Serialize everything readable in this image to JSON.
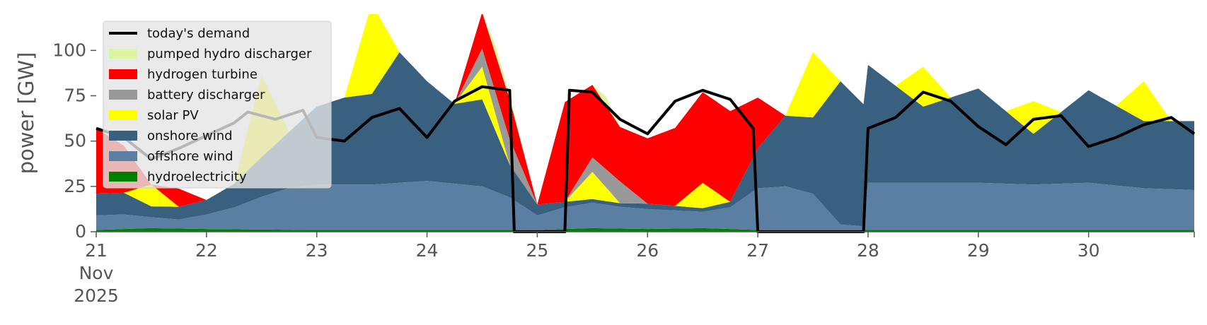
{
  "chart_data": {
    "type": "area",
    "title": "",
    "ylabel": "power [GW]",
    "xlabel": "",
    "xlim": [
      "2025-11-21T00:00",
      "2025-11-30T23:00"
    ],
    "ylim": [
      0,
      120
    ],
    "yticks": [
      0,
      25,
      50,
      75,
      100
    ],
    "xticks": [
      {
        "x": "2025-11-21T00:00",
        "label": "21",
        "sublabels": [
          "Nov",
          "2025"
        ]
      },
      {
        "x": "2025-11-22T00:00",
        "label": "22"
      },
      {
        "x": "2025-11-23T00:00",
        "label": "23"
      },
      {
        "x": "2025-11-24T00:00",
        "label": "24"
      },
      {
        "x": "2025-11-25T00:00",
        "label": "25"
      },
      {
        "x": "2025-11-26T00:00",
        "label": "26"
      },
      {
        "x": "2025-11-27T00:00",
        "label": "27"
      },
      {
        "x": "2025-11-28T00:00",
        "label": "28"
      },
      {
        "x": "2025-11-29T00:00",
        "label": "29"
      },
      {
        "x": "2025-11-30T00:00",
        "label": "30"
      }
    ],
    "grid": false,
    "legend_position": "top-left",
    "stack_order": [
      "hydroelectricity",
      "offshore wind",
      "onshore wind",
      "solar PV",
      "battery discharger",
      "hydrogen turbine",
      "pumped hydro discharger"
    ],
    "series": [
      {
        "name": "hydroelectricity",
        "color": "#008000",
        "points": [
          [
            "2025-11-21T00:00",
            1
          ],
          [
            "2025-11-21T12:00",
            2
          ],
          [
            "2025-11-22T00:00",
            1.5
          ],
          [
            "2025-11-23T00:00",
            1
          ],
          [
            "2025-11-24T00:00",
            1
          ],
          [
            "2025-11-25T00:00",
            1
          ],
          [
            "2025-11-25T12:00",
            2
          ],
          [
            "2025-11-26T00:00",
            1.5
          ],
          [
            "2025-11-26T12:00",
            2
          ],
          [
            "2025-11-27T00:00",
            1
          ],
          [
            "2025-11-28T00:00",
            1
          ],
          [
            "2025-11-29T00:00",
            1
          ],
          [
            "2025-11-30T00:00",
            1
          ],
          [
            "2025-11-30T23:00",
            1
          ]
        ]
      },
      {
        "name": "offshore wind",
        "color": "#5b7fa3",
        "points": [
          [
            "2025-11-21T00:00",
            8
          ],
          [
            "2025-11-21T06:00",
            8
          ],
          [
            "2025-11-21T12:00",
            6
          ],
          [
            "2025-11-21T18:00",
            5
          ],
          [
            "2025-11-22T00:00",
            8
          ],
          [
            "2025-11-22T06:00",
            12
          ],
          [
            "2025-11-22T12:00",
            18
          ],
          [
            "2025-11-22T18:00",
            23
          ],
          [
            "2025-11-23T00:00",
            25
          ],
          [
            "2025-11-23T12:00",
            25
          ],
          [
            "2025-11-24T00:00",
            27
          ],
          [
            "2025-11-24T12:00",
            24
          ],
          [
            "2025-11-24T18:00",
            18
          ],
          [
            "2025-11-25T00:00",
            8
          ],
          [
            "2025-11-25T06:00",
            12
          ],
          [
            "2025-11-25T12:00",
            14
          ],
          [
            "2025-11-25T18:00",
            12
          ],
          [
            "2025-11-26T00:00",
            11
          ],
          [
            "2025-11-26T12:00",
            9
          ],
          [
            "2025-11-26T18:00",
            12
          ],
          [
            "2025-11-27T00:00",
            23
          ],
          [
            "2025-11-27T06:00",
            24
          ],
          [
            "2025-11-27T12:00",
            20
          ],
          [
            "2025-11-27T18:00",
            3
          ],
          [
            "2025-11-27T23:00",
            2
          ],
          [
            "2025-11-28T00:00",
            26
          ],
          [
            "2025-11-28T12:00",
            26
          ],
          [
            "2025-11-29T00:00",
            26
          ],
          [
            "2025-11-29T12:00",
            25
          ],
          [
            "2025-11-30T00:00",
            26
          ],
          [
            "2025-11-30T12:00",
            23
          ],
          [
            "2025-11-30T23:00",
            22
          ]
        ]
      },
      {
        "name": "onshore wind",
        "color": "#3a6080",
        "points": [
          [
            "2025-11-21T00:00",
            12
          ],
          [
            "2025-11-21T06:00",
            12
          ],
          [
            "2025-11-21T12:00",
            6
          ],
          [
            "2025-11-21T18:00",
            7
          ],
          [
            "2025-11-22T00:00",
            8
          ],
          [
            "2025-11-22T06:00",
            13
          ],
          [
            "2025-11-22T12:00",
            22
          ],
          [
            "2025-11-22T18:00",
            31
          ],
          [
            "2025-11-23T00:00",
            43
          ],
          [
            "2025-11-23T06:00",
            48
          ],
          [
            "2025-11-23T12:00",
            50
          ],
          [
            "2025-11-23T18:00",
            72
          ],
          [
            "2025-11-24T00:00",
            55
          ],
          [
            "2025-11-24T06:00",
            44
          ],
          [
            "2025-11-24T12:00",
            48
          ],
          [
            "2025-11-24T18:00",
            18
          ],
          [
            "2025-11-25T00:00",
            6
          ],
          [
            "2025-11-25T06:00",
            3
          ],
          [
            "2025-11-25T12:00",
            2
          ],
          [
            "2025-11-25T18:00",
            2
          ],
          [
            "2025-11-26T00:00",
            3
          ],
          [
            "2025-11-26T12:00",
            2
          ],
          [
            "2025-11-26T18:00",
            3
          ],
          [
            "2025-11-27T00:00",
            22
          ],
          [
            "2025-11-27T06:00",
            39
          ],
          [
            "2025-11-27T12:00",
            42
          ],
          [
            "2025-11-27T18:00",
            79
          ],
          [
            "2025-11-28T00:00",
            65
          ],
          [
            "2025-11-28T12:00",
            42
          ],
          [
            "2025-11-29T00:00",
            52
          ],
          [
            "2025-11-29T12:00",
            28
          ],
          [
            "2025-11-30T00:00",
            51
          ],
          [
            "2025-11-30T12:00",
            37
          ],
          [
            "2025-11-30T23:00",
            38
          ]
        ]
      },
      {
        "name": "solar PV",
        "color": "#ffff00",
        "points": [
          [
            "2025-11-21T00:00",
            0
          ],
          [
            "2025-11-21T06:00",
            0
          ],
          [
            "2025-11-21T12:00",
            12
          ],
          [
            "2025-11-21T18:00",
            0
          ],
          [
            "2025-11-22T06:00",
            0
          ],
          [
            "2025-11-22T12:00",
            45
          ],
          [
            "2025-11-22T18:00",
            0
          ],
          [
            "2025-11-23T06:00",
            0
          ],
          [
            "2025-11-23T12:00",
            50
          ],
          [
            "2025-11-23T18:00",
            0
          ],
          [
            "2025-11-24T06:00",
            0
          ],
          [
            "2025-11-24T12:00",
            18
          ],
          [
            "2025-11-24T18:00",
            0
          ],
          [
            "2025-11-25T06:00",
            0
          ],
          [
            "2025-11-25T12:00",
            15
          ],
          [
            "2025-11-25T18:00",
            0
          ],
          [
            "2025-11-26T06:00",
            0
          ],
          [
            "2025-11-26T12:00",
            14
          ],
          [
            "2025-11-26T18:00",
            0
          ],
          [
            "2025-11-27T06:00",
            0
          ],
          [
            "2025-11-27T12:00",
            36
          ],
          [
            "2025-11-27T18:00",
            0
          ],
          [
            "2025-11-28T06:00",
            0
          ],
          [
            "2025-11-28T12:00",
            22
          ],
          [
            "2025-11-28T18:00",
            0
          ],
          [
            "2025-11-29T06:00",
            0
          ],
          [
            "2025-11-29T12:00",
            18
          ],
          [
            "2025-11-29T18:00",
            0
          ],
          [
            "2025-11-30T06:00",
            0
          ],
          [
            "2025-11-30T12:00",
            22
          ],
          [
            "2025-11-30T18:00",
            0
          ],
          [
            "2025-11-30T23:00",
            0
          ]
        ]
      },
      {
        "name": "battery discharger",
        "color": "#999999",
        "points": [
          [
            "2025-11-21T00:00",
            0
          ],
          [
            "2025-11-24T06:00",
            0
          ],
          [
            "2025-11-24T12:00",
            10
          ],
          [
            "2025-11-24T18:00",
            14
          ],
          [
            "2025-11-25T00:00",
            0
          ],
          [
            "2025-11-25T06:00",
            0
          ],
          [
            "2025-11-25T12:00",
            8
          ],
          [
            "2025-11-25T18:00",
            12
          ],
          [
            "2025-11-26T00:00",
            0
          ],
          [
            "2025-11-30T23:00",
            0
          ]
        ]
      },
      {
        "name": "hydrogen turbine",
        "color": "#ff0000",
        "points": [
          [
            "2025-11-21T00:00",
            36
          ],
          [
            "2025-11-21T06:00",
            26
          ],
          [
            "2025-11-21T12:00",
            0
          ],
          [
            "2025-11-21T18:00",
            10
          ],
          [
            "2025-11-22T00:00",
            0
          ],
          [
            "2025-11-24T06:00",
            0
          ],
          [
            "2025-11-24T12:00",
            20
          ],
          [
            "2025-11-24T18:00",
            22
          ],
          [
            "2025-11-25T00:00",
            0
          ],
          [
            "2025-11-25T06:00",
            55
          ],
          [
            "2025-11-25T12:00",
            40
          ],
          [
            "2025-11-25T18:00",
            30
          ],
          [
            "2025-11-26T00:00",
            36
          ],
          [
            "2025-11-26T12:00",
            50
          ],
          [
            "2025-11-26T18:00",
            50
          ],
          [
            "2025-11-27T00:00",
            28
          ],
          [
            "2025-11-27T06:00",
            0
          ],
          [
            "2025-11-30T23:00",
            0
          ]
        ]
      },
      {
        "name": "pumped hydro discharger",
        "color": "#dbf5a3",
        "points": [
          [
            "2025-11-21T00:00",
            0
          ],
          [
            "2025-11-24T12:00",
            0
          ],
          [
            "2025-11-24T15:00",
            5
          ],
          [
            "2025-11-24T18:00",
            2
          ],
          [
            "2025-11-24T21:00",
            0
          ],
          [
            "2025-11-25T12:00",
            0
          ],
          [
            "2025-11-25T15:00",
            5
          ],
          [
            "2025-11-25T18:00",
            0
          ],
          [
            "2025-11-30T23:00",
            0
          ]
        ]
      },
      {
        "name": "today's demand",
        "color": "#000000",
        "line": true,
        "points": [
          [
            "2025-11-21T00:00",
            57
          ],
          [
            "2025-11-21T06:00",
            52
          ],
          [
            "2025-11-21T12:00",
            40
          ],
          [
            "2025-11-21T18:00",
            46
          ],
          [
            "2025-11-22T00:00",
            53
          ],
          [
            "2025-11-22T06:00",
            60
          ],
          [
            "2025-11-22T09:00",
            66
          ],
          [
            "2025-11-22T15:00",
            62
          ],
          [
            "2025-11-22T21:00",
            67
          ],
          [
            "2025-11-23T00:00",
            52
          ],
          [
            "2025-11-23T06:00",
            50
          ],
          [
            "2025-11-23T12:00",
            63
          ],
          [
            "2025-11-23T18:00",
            68
          ],
          [
            "2025-11-24T00:00",
            52
          ],
          [
            "2025-11-24T06:00",
            72
          ],
          [
            "2025-11-24T12:00",
            80
          ],
          [
            "2025-11-24T18:00",
            78
          ],
          [
            "2025-11-24T19:00",
            0
          ],
          [
            "2025-11-25T06:00",
            0
          ],
          [
            "2025-11-25T07:00",
            78
          ],
          [
            "2025-11-25T12:00",
            77
          ],
          [
            "2025-11-25T18:00",
            62
          ],
          [
            "2025-11-26T00:00",
            54
          ],
          [
            "2025-11-26T06:00",
            72
          ],
          [
            "2025-11-26T12:00",
            78
          ],
          [
            "2025-11-26T18:00",
            73
          ],
          [
            "2025-11-26T23:00",
            57
          ],
          [
            "2025-11-27T00:00",
            0
          ],
          [
            "2025-11-27T23:00",
            0
          ],
          [
            "2025-11-28T00:00",
            57
          ],
          [
            "2025-11-28T06:00",
            63
          ],
          [
            "2025-11-28T12:00",
            77
          ],
          [
            "2025-11-28T18:00",
            72
          ],
          [
            "2025-11-29T00:00",
            58
          ],
          [
            "2025-11-29T06:00",
            48
          ],
          [
            "2025-11-29T12:00",
            62
          ],
          [
            "2025-11-29T18:00",
            64
          ],
          [
            "2025-11-30T00:00",
            47
          ],
          [
            "2025-11-30T06:00",
            52
          ],
          [
            "2025-11-30T12:00",
            59
          ],
          [
            "2025-11-30T18:00",
            63
          ],
          [
            "2025-11-30T23:00",
            54
          ]
        ]
      }
    ],
    "legend": [
      {
        "label": "today's demand",
        "kind": "line",
        "color": "#000000"
      },
      {
        "label": "pumped hydro discharger",
        "kind": "patch",
        "color": "#dbf5a3"
      },
      {
        "label": "hydrogen turbine",
        "kind": "patch",
        "color": "#ff0000"
      },
      {
        "label": "battery discharger",
        "kind": "patch",
        "color": "#999999"
      },
      {
        "label": "solar PV",
        "kind": "patch",
        "color": "#ffff00"
      },
      {
        "label": "onshore wind",
        "kind": "patch",
        "color": "#3a6080"
      },
      {
        "label": "offshore wind",
        "kind": "patch",
        "color": "#5b7fa3"
      },
      {
        "label": "hydroelectricity",
        "kind": "patch",
        "color": "#008000"
      }
    ]
  }
}
